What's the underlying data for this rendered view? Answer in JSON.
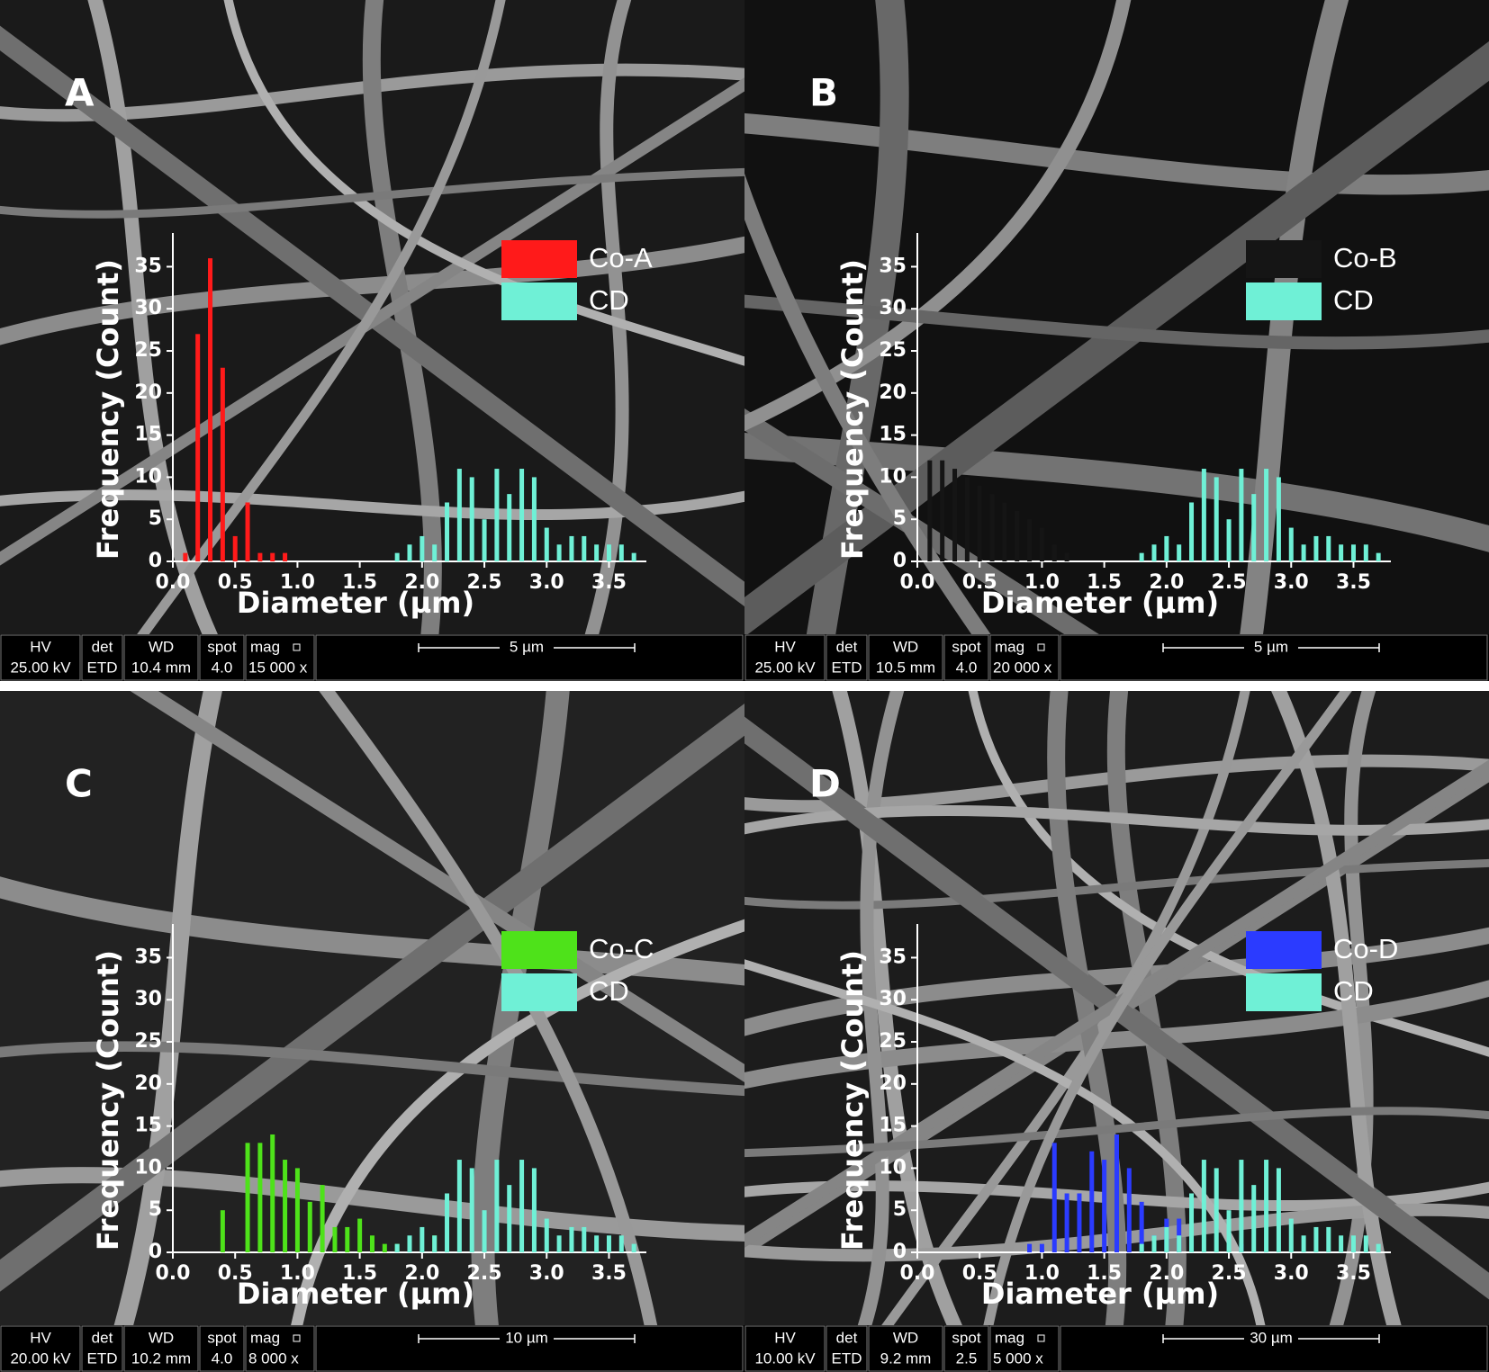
{
  "info_headers": [
    "HV",
    "det",
    "WD",
    "spot",
    "mag"
  ],
  "chart_data": [
    {
      "type": "bar",
      "panel_label": "A",
      "x_label": "Diameter (µm)",
      "y_label": "Frequency (Count)",
      "xlim": [
        0,
        3.8
      ],
      "ylim": [
        0,
        39
      ],
      "xticks": [
        {
          "value": 0,
          "label": "0.0"
        },
        0.5,
        {
          "value": 1,
          "label": "1.0"
        },
        1.5,
        {
          "value": 2,
          "label": "2.0"
        },
        2.5,
        {
          "value": 3,
          "label": "3.0"
        },
        3.5
      ],
      "yticks": [
        0,
        5,
        10,
        15,
        20,
        25,
        30,
        35
      ],
      "legend": "upper right",
      "series": [
        {
          "name": "Co-A",
          "color": "#ff1a1a",
          "x": [
            0.1,
            0.2,
            0.3,
            0.4,
            0.5,
            0.6,
            0.7,
            0.8,
            0.9
          ],
          "values": [
            1,
            27,
            36,
            23,
            3,
            7,
            1,
            1,
            1
          ]
        },
        {
          "name": "CD",
          "color": "#6ff0d6",
          "x": [
            1.8,
            1.9,
            2.0,
            2.1,
            2.2,
            2.3,
            2.4,
            2.5,
            2.6,
            2.7,
            2.8,
            2.9,
            3.0,
            3.1,
            3.2,
            3.3,
            3.4,
            3.5,
            3.6,
            3.7
          ],
          "values": [
            1,
            2,
            3,
            2,
            7,
            11,
            10,
            5,
            11,
            8,
            11,
            10,
            4,
            2,
            3,
            3,
            2,
            2,
            2,
            1
          ]
        }
      ],
      "info": {
        "hv": "25.00 kV",
        "det": "ETD",
        "wd": "10.4 mm",
        "spot": "4.0",
        "mag": "15 000 x",
        "scale": "5 µm"
      }
    },
    {
      "type": "bar",
      "panel_label": "B",
      "x_label": "Diameter (µm)",
      "y_label": "Frequency (Count)",
      "xlim": [
        0,
        3.8
      ],
      "ylim": [
        0,
        39
      ],
      "xticks": [
        {
          "value": 0,
          "label": "0.0"
        },
        0.5,
        {
          "value": 1,
          "label": "1.0"
        },
        1.5,
        {
          "value": 2,
          "label": "2.0"
        },
        2.5,
        {
          "value": 3,
          "label": "3.0"
        },
        3.5
      ],
      "yticks": [
        0,
        5,
        10,
        15,
        20,
        25,
        30,
        35
      ],
      "legend": "upper right",
      "series": [
        {
          "name": "Co-B",
          "color": "#151515",
          "x": [
            0.1,
            0.2,
            0.3,
            0.4,
            0.5,
            0.6,
            0.7,
            0.8,
            0.9,
            1.0,
            1.1,
            1.2
          ],
          "values": [
            12,
            12,
            11,
            10,
            9,
            8,
            7,
            6,
            5,
            4,
            2,
            1
          ]
        },
        {
          "name": "CD",
          "color": "#6ff0d6",
          "x": [
            1.8,
            1.9,
            2.0,
            2.1,
            2.2,
            2.3,
            2.4,
            2.5,
            2.6,
            2.7,
            2.8,
            2.9,
            3.0,
            3.1,
            3.2,
            3.3,
            3.4,
            3.5,
            3.6,
            3.7
          ],
          "values": [
            1,
            2,
            3,
            2,
            7,
            11,
            10,
            5,
            11,
            8,
            11,
            10,
            4,
            2,
            3,
            3,
            2,
            2,
            2,
            1
          ]
        }
      ],
      "info": {
        "hv": "25.00 kV",
        "det": "ETD",
        "wd": "10.5 mm",
        "spot": "4.0",
        "mag": "20 000 x",
        "scale": "5 µm"
      }
    },
    {
      "type": "bar",
      "panel_label": "C",
      "x_label": "Diameter (µm)",
      "y_label": "Frequency (Count)",
      "xlim": [
        0,
        3.8
      ],
      "ylim": [
        0,
        39
      ],
      "xticks": [
        {
          "value": 0,
          "label": "0.0"
        },
        0.5,
        {
          "value": 1,
          "label": "1.0"
        },
        1.5,
        {
          "value": 2,
          "label": "2.0"
        },
        2.5,
        {
          "value": 3,
          "label": "3.0"
        },
        3.5
      ],
      "yticks": [
        0,
        5,
        10,
        15,
        20,
        25,
        30,
        35
      ],
      "legend": "upper right",
      "series": [
        {
          "name": "Co-C",
          "color": "#4ee21a",
          "x": [
            0.4,
            0.6,
            0.7,
            0.8,
            0.9,
            1.0,
            1.1,
            1.2,
            1.3,
            1.4,
            1.5,
            1.6,
            1.7,
            1.8,
            1.9,
            2.1
          ],
          "values": [
            5,
            13,
            13,
            14,
            11,
            10,
            6,
            8,
            3,
            3,
            4,
            2,
            1,
            1,
            1,
            2
          ]
        },
        {
          "name": "CD",
          "color": "#6ff0d6",
          "x": [
            1.8,
            1.9,
            2.0,
            2.1,
            2.2,
            2.3,
            2.4,
            2.5,
            2.6,
            2.7,
            2.8,
            2.9,
            3.0,
            3.1,
            3.2,
            3.3,
            3.4,
            3.5,
            3.6,
            3.7
          ],
          "values": [
            1,
            2,
            3,
            2,
            7,
            11,
            10,
            5,
            11,
            8,
            11,
            10,
            4,
            2,
            3,
            3,
            2,
            2,
            2,
            1
          ]
        }
      ],
      "info": {
        "hv": "20.00 kV",
        "det": "ETD",
        "wd": "10.2 mm",
        "spot": "4.0",
        "mag": "8 000 x",
        "scale": "10 µm"
      }
    },
    {
      "type": "bar",
      "panel_label": "D",
      "x_label": "Diameter (µm)",
      "y_label": "Frequency (Count)",
      "xlim": [
        0,
        3.8
      ],
      "ylim": [
        0,
        39
      ],
      "xticks": [
        {
          "value": 0,
          "label": "0.0"
        },
        0.5,
        {
          "value": 1,
          "label": "1.0"
        },
        1.5,
        {
          "value": 2,
          "label": "2.0"
        },
        2.5,
        {
          "value": 3,
          "label": "3.0"
        },
        3.5
      ],
      "yticks": [
        0,
        5,
        10,
        15,
        20,
        25,
        30,
        35
      ],
      "legend": "upper right",
      "series": [
        {
          "name": "Co-D",
          "color": "#2b3bff",
          "x": [
            0.9,
            1.0,
            1.1,
            1.2,
            1.3,
            1.4,
            1.5,
            1.6,
            1.7,
            1.8,
            1.9,
            2.0,
            2.1,
            2.2,
            2.6
          ],
          "values": [
            1,
            1,
            13,
            7,
            7,
            12,
            11,
            14,
            10,
            6,
            2,
            4,
            4,
            2,
            1
          ]
        },
        {
          "name": "CD",
          "color": "#6ff0d6",
          "x": [
            1.8,
            1.9,
            2.0,
            2.1,
            2.2,
            2.3,
            2.4,
            2.5,
            2.6,
            2.7,
            2.8,
            2.9,
            3.0,
            3.1,
            3.2,
            3.3,
            3.4,
            3.5,
            3.6,
            3.7
          ],
          "values": [
            1,
            2,
            3,
            2,
            7,
            11,
            10,
            5,
            11,
            8,
            11,
            10,
            4,
            2,
            3,
            3,
            2,
            2,
            2,
            1
          ]
        }
      ],
      "info": {
        "hv": "10.00 kV",
        "det": "ETD",
        "wd": "9.2 mm",
        "spot": "2.5",
        "mag": "5 000 x",
        "scale": "30 µm"
      }
    }
  ]
}
